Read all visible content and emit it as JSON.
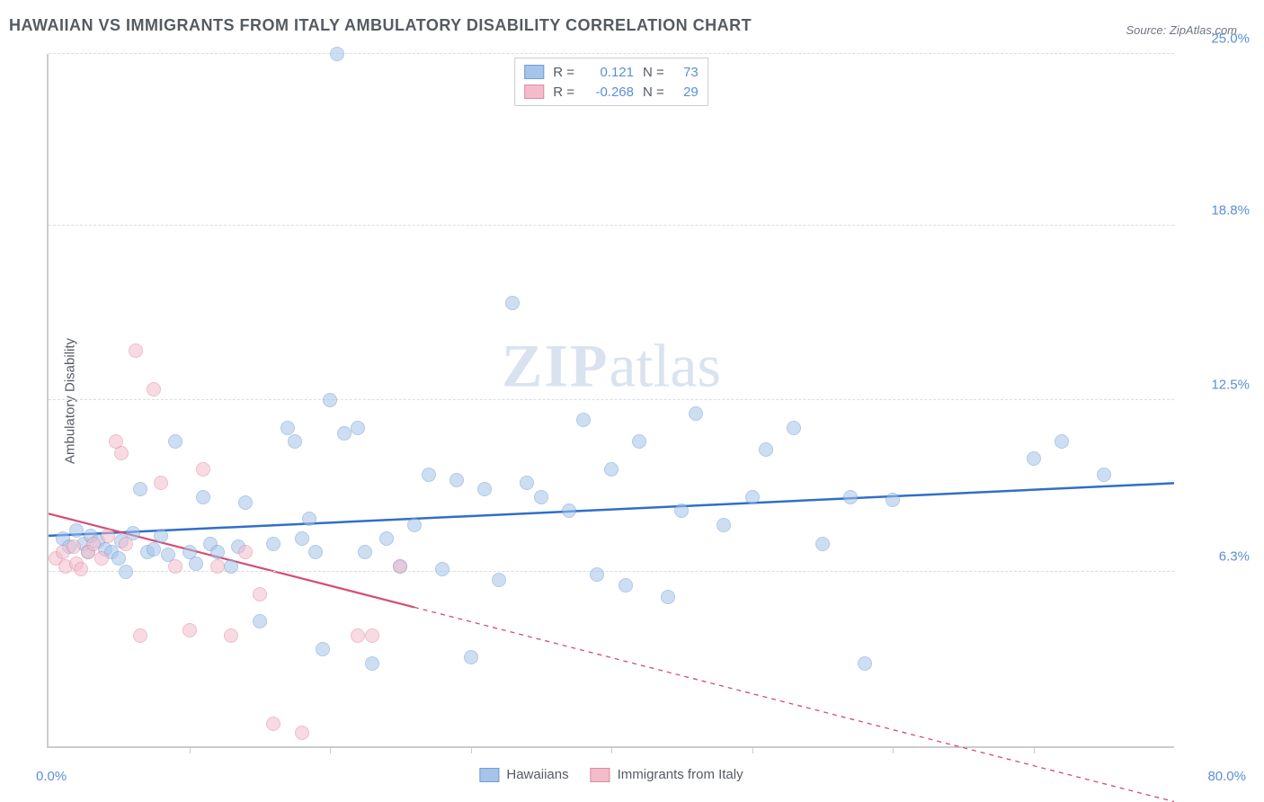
{
  "title": "HAWAIIAN VS IMMIGRANTS FROM ITALY AMBULATORY DISABILITY CORRELATION CHART",
  "source_label": "Source: ZipAtlas.com",
  "ylabel": "Ambulatory Disability",
  "watermark_zip": "ZIP",
  "watermark_atlas": "atlas",
  "xlim": [
    0,
    80
  ],
  "ylim": [
    0,
    25
  ],
  "x_unit": "%",
  "xmin_label": "0.0%",
  "xmax_label": "80.0%",
  "yticks": [
    {
      "v": 6.3,
      "label": "6.3%"
    },
    {
      "v": 12.5,
      "label": "12.5%"
    },
    {
      "v": 18.8,
      "label": "18.8%"
    },
    {
      "v": 25.0,
      "label": "25.0%"
    }
  ],
  "xticks": [
    10,
    20,
    30,
    40,
    50,
    60,
    70
  ],
  "marker_radius": 8,
  "series": [
    {
      "key": "hawaiians",
      "label": "Hawaiians",
      "fill_color": "#a6c4ea",
      "stroke_color": "#6f9ed6",
      "fill_opacity": 0.55,
      "R": "0.121",
      "N": "73",
      "trend": {
        "x1": 0,
        "y1": 7.6,
        "x2": 80,
        "y2": 9.5,
        "color": "#2f6fc9",
        "width": 2.5,
        "solid_end_x": 80
      },
      "points": [
        [
          1.0,
          7.5
        ],
        [
          1.5,
          7.2
        ],
        [
          2.0,
          7.8
        ],
        [
          2.5,
          7.3
        ],
        [
          2.8,
          7.0
        ],
        [
          3.0,
          7.6
        ],
        [
          3.5,
          7.4
        ],
        [
          4.0,
          7.1
        ],
        [
          4.5,
          7.0
        ],
        [
          5.0,
          6.8
        ],
        [
          5.2,
          7.4
        ],
        [
          5.5,
          6.3
        ],
        [
          6.0,
          7.7
        ],
        [
          6.5,
          9.3
        ],
        [
          7.0,
          7.0
        ],
        [
          7.5,
          7.1
        ],
        [
          8.0,
          7.6
        ],
        [
          8.5,
          6.9
        ],
        [
          9.0,
          11.0
        ],
        [
          10.0,
          7.0
        ],
        [
          10.5,
          6.6
        ],
        [
          11.0,
          9.0
        ],
        [
          11.5,
          7.3
        ],
        [
          12.0,
          7.0
        ],
        [
          13.0,
          6.5
        ],
        [
          13.5,
          7.2
        ],
        [
          14.0,
          8.8
        ],
        [
          15.0,
          4.5
        ],
        [
          16.0,
          7.3
        ],
        [
          17.0,
          11.5
        ],
        [
          17.5,
          11.0
        ],
        [
          18.0,
          7.5
        ],
        [
          18.5,
          8.2
        ],
        [
          19.0,
          7.0
        ],
        [
          19.5,
          3.5
        ],
        [
          20.0,
          12.5
        ],
        [
          20.5,
          25.0
        ],
        [
          21.0,
          11.3
        ],
        [
          22.0,
          11.5
        ],
        [
          22.5,
          7.0
        ],
        [
          23.0,
          3.0
        ],
        [
          24.0,
          7.5
        ],
        [
          25.0,
          6.5
        ],
        [
          26.0,
          8.0
        ],
        [
          27.0,
          9.8
        ],
        [
          28.0,
          6.4
        ],
        [
          29.0,
          9.6
        ],
        [
          30.0,
          3.2
        ],
        [
          31.0,
          9.3
        ],
        [
          32.0,
          6.0
        ],
        [
          33.0,
          16.0
        ],
        [
          34.0,
          9.5
        ],
        [
          35.0,
          9.0
        ],
        [
          37.0,
          8.5
        ],
        [
          38.0,
          11.8
        ],
        [
          39.0,
          6.2
        ],
        [
          40.0,
          10.0
        ],
        [
          41.0,
          5.8
        ],
        [
          42.0,
          11.0
        ],
        [
          44.0,
          5.4
        ],
        [
          45.0,
          8.5
        ],
        [
          46.0,
          12.0
        ],
        [
          48.0,
          8.0
        ],
        [
          50.0,
          9.0
        ],
        [
          51.0,
          10.7
        ],
        [
          53.0,
          11.5
        ],
        [
          55.0,
          7.3
        ],
        [
          57.0,
          9.0
        ],
        [
          58.0,
          3.0
        ],
        [
          60.0,
          8.9
        ],
        [
          70.0,
          10.4
        ],
        [
          72.0,
          11.0
        ],
        [
          75.0,
          9.8
        ]
      ]
    },
    {
      "key": "immigrants_italy",
      "label": "Immigrants from Italy",
      "fill_color": "#f3bccb",
      "stroke_color": "#df8aa2",
      "fill_opacity": 0.55,
      "R": "-0.268",
      "N": "29",
      "trend": {
        "x1": 0,
        "y1": 8.4,
        "x2": 80,
        "y2": -2.0,
        "color": "#d64d73",
        "width": 2.2,
        "solid_end_x": 26
      },
      "points": [
        [
          0.5,
          6.8
        ],
        [
          1.0,
          7.0
        ],
        [
          1.2,
          6.5
        ],
        [
          1.8,
          7.2
        ],
        [
          2.0,
          6.6
        ],
        [
          2.3,
          6.4
        ],
        [
          2.8,
          7.0
        ],
        [
          3.2,
          7.3
        ],
        [
          3.8,
          6.8
        ],
        [
          4.2,
          7.6
        ],
        [
          4.8,
          11.0
        ],
        [
          5.2,
          10.6
        ],
        [
          5.5,
          7.3
        ],
        [
          6.2,
          14.3
        ],
        [
          6.5,
          4.0
        ],
        [
          7.5,
          12.9
        ],
        [
          8.0,
          9.5
        ],
        [
          9.0,
          6.5
        ],
        [
          10.0,
          4.2
        ],
        [
          11.0,
          10.0
        ],
        [
          12.0,
          6.5
        ],
        [
          13.0,
          4.0
        ],
        [
          14.0,
          7.0
        ],
        [
          15.0,
          5.5
        ],
        [
          16.0,
          0.8
        ],
        [
          18.0,
          0.5
        ],
        [
          22.0,
          4.0
        ],
        [
          23.0,
          4.0
        ],
        [
          25.0,
          6.5
        ]
      ]
    }
  ],
  "legend_top": {
    "R_prefix": "R =",
    "N_prefix": "N ="
  },
  "background_color": "#ffffff",
  "grid_color": "#d8dde2",
  "axis_color": "#c9ccd0"
}
